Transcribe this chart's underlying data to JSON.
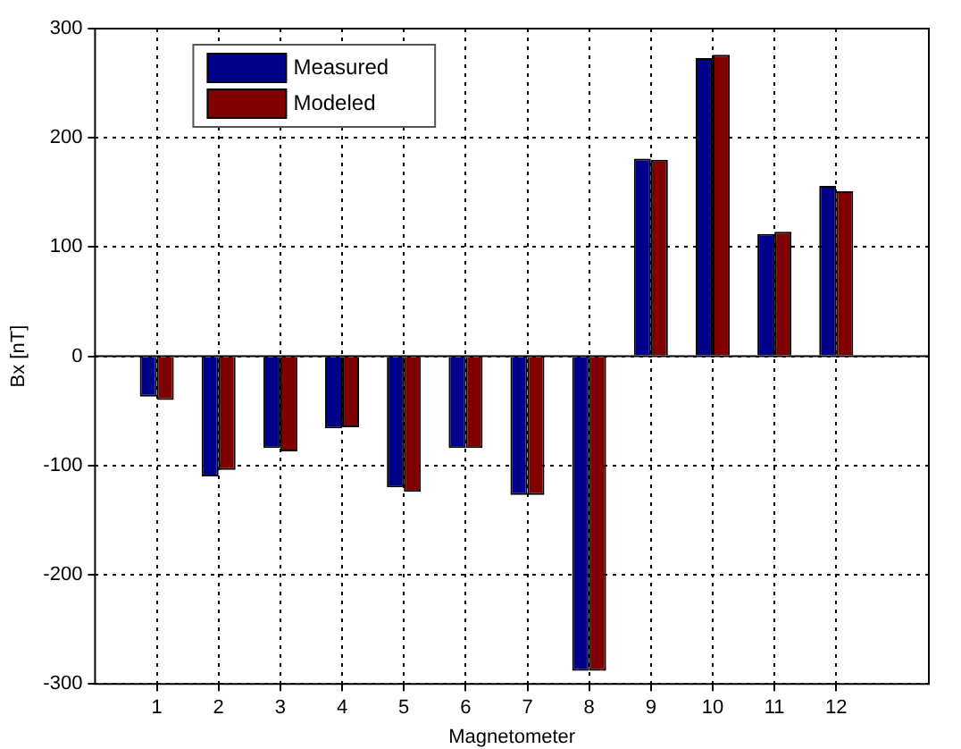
{
  "chart_data": {
    "type": "bar",
    "xlabel": "Magnetometer",
    "ylabel": "Bx [nT]",
    "x": [
      1,
      2,
      3,
      4,
      5,
      6,
      7,
      8,
      9,
      10,
      11,
      12
    ],
    "series": [
      {
        "name": "Measured",
        "color": "#00008b",
        "values": [
          -37,
          -110,
          -84,
          -66,
          -120,
          -84,
          -127,
          -288,
          181,
          273,
          112,
          156
        ]
      },
      {
        "name": "Modeled",
        "color": "#800000",
        "values": [
          -40,
          -104,
          -87,
          -65,
          -124,
          -84,
          -127,
          -288,
          180,
          276,
          114,
          151
        ]
      }
    ],
    "xlim": [
      0,
      13.5
    ],
    "xticks": [
      1,
      2,
      3,
      4,
      5,
      6,
      7,
      8,
      9,
      10,
      11,
      12
    ],
    "ylim": [
      -300,
      300
    ],
    "yticks": [
      -300,
      -200,
      -100,
      0,
      100,
      200,
      300
    ],
    "grid": true,
    "legend": "top left"
  }
}
